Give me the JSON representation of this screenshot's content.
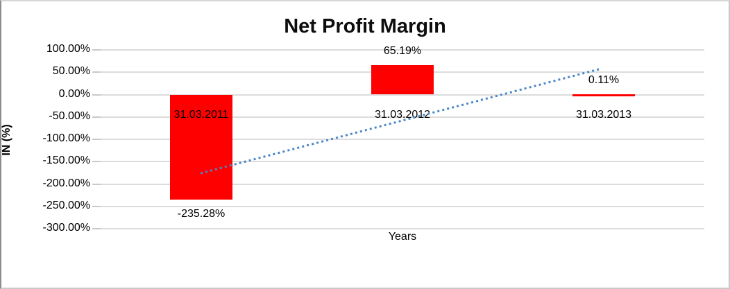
{
  "chart_data": {
    "type": "bar",
    "title": "Net Profit Margin",
    "xlabel": "Years",
    "ylabel": "IN (%)",
    "categories": [
      "31.03.2011",
      "31.03.2012",
      "31.03.2013"
    ],
    "values": [
      -235.28,
      65.19,
      0.11
    ],
    "data_labels": [
      "-235.28%",
      "65.19%",
      "0.11%"
    ],
    "ylim": [
      -300,
      100
    ],
    "ytick_step": 50,
    "ytick_labels": [
      "100.00%",
      "50.00%",
      "0.00%",
      "-50.00%",
      "-100.00%",
      "-150.00%",
      "-200.00%",
      "-250.00%",
      "-300.00%"
    ],
    "grid": true,
    "legend": "none",
    "bar_color": "#ff0000",
    "trendline": {
      "type": "linear",
      "style": "dotted",
      "color": "#4a86c8",
      "x_start_frac": 0.1655,
      "y_start_value": -176,
      "x_end_frac": 0.829,
      "y_end_value": 58
    }
  }
}
